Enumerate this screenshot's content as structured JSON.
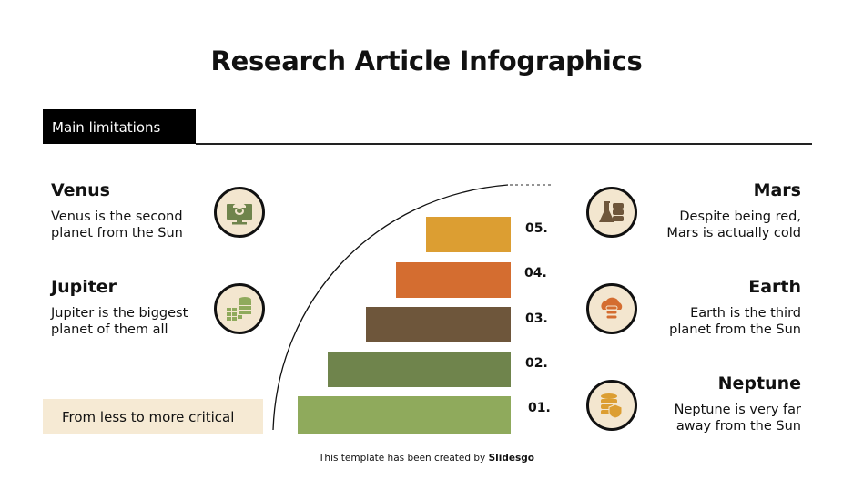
{
  "title": "Research Article Infographics",
  "section_tab": "Main limitations",
  "left_items": [
    {
      "heading": "Venus",
      "line1": "Venus is the second",
      "line2": "planet from the Sun",
      "icon": "monitor-helmet-icon",
      "color": "#6f844c"
    },
    {
      "heading": "Jupiter",
      "line1": "Jupiter is the biggest",
      "line2": "planet of them all",
      "icon": "database-grid-icon",
      "color": "#8faa5c"
    }
  ],
  "right_items": [
    {
      "heading": "Mars",
      "line1": "Despite being red,",
      "line2": "Mars is actually cold",
      "icon": "flask-database-icon",
      "color": "#6e563b"
    },
    {
      "heading": "Earth",
      "line1": "Earth is the third",
      "line2": "planet from the Sun",
      "icon": "cloud-database-icon",
      "color": "#d46d30"
    },
    {
      "heading": "Neptune",
      "line1": "Neptune is very far",
      "line2": "away from the Sun",
      "icon": "database-shield-icon",
      "color": "#dc9e32"
    }
  ],
  "levels": [
    {
      "label": "05.",
      "color": "#dc9e32"
    },
    {
      "label": "04.",
      "color": "#d46d30"
    },
    {
      "label": "03.",
      "color": "#6e563b"
    },
    {
      "label": "02.",
      "color": "#6f844c"
    },
    {
      "label": "01.",
      "color": "#8faa5c"
    }
  ],
  "criticality_label": "From less to more critical",
  "footer": {
    "text": "This template has been created by ",
    "brand": "Slidesgo"
  }
}
